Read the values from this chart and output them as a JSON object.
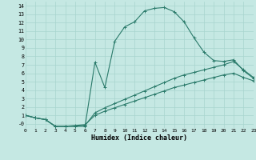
{
  "xlabel": "Humidex (Indice chaleur)",
  "bg_color": "#c5e8e3",
  "grid_color": "#a8d4ce",
  "line_color": "#2a7a6a",
  "xlim": [
    0,
    23
  ],
  "ylim": [
    -0.5,
    14.5
  ],
  "xticks": [
    0,
    1,
    2,
    3,
    4,
    5,
    6,
    7,
    8,
    9,
    10,
    11,
    12,
    13,
    14,
    15,
    16,
    17,
    18,
    19,
    20,
    21,
    22,
    23
  ],
  "yticks": [
    0,
    1,
    2,
    3,
    4,
    5,
    6,
    7,
    8,
    9,
    10,
    11,
    12,
    13,
    14
  ],
  "ytick_labels": [
    "-0",
    "1",
    "2",
    "3",
    "4",
    "5",
    "6",
    "7",
    "8",
    "9",
    "10",
    "11",
    "12",
    "13",
    "14"
  ],
  "curve1_x": [
    0,
    1,
    2,
    3,
    4,
    5,
    6,
    7,
    8,
    9,
    10,
    11,
    12,
    13,
    14,
    15,
    16,
    17,
    18,
    19,
    20,
    21,
    22,
    23
  ],
  "curve1_y": [
    1.0,
    0.7,
    0.5,
    -0.3,
    -0.3,
    -0.3,
    -0.3,
    7.3,
    4.3,
    9.8,
    11.5,
    12.1,
    13.4,
    13.7,
    13.8,
    13.3,
    12.1,
    10.2,
    8.5,
    7.5,
    7.4,
    7.6,
    6.3,
    5.4
  ],
  "curve2_x": [
    0,
    1,
    2,
    3,
    4,
    5,
    6,
    7,
    8,
    9,
    10,
    11,
    12,
    13,
    14,
    15,
    16,
    17,
    18,
    19,
    20,
    21,
    22,
    23
  ],
  "curve2_y": [
    1.0,
    0.7,
    0.5,
    -0.3,
    -0.3,
    -0.3,
    -0.2,
    1.3,
    1.9,
    2.4,
    2.9,
    3.4,
    3.9,
    4.4,
    4.9,
    5.4,
    5.8,
    6.1,
    6.4,
    6.7,
    7.0,
    7.4,
    6.4,
    5.5
  ],
  "curve3_x": [
    0,
    1,
    2,
    3,
    4,
    5,
    6,
    7,
    8,
    9,
    10,
    11,
    12,
    13,
    14,
    15,
    16,
    17,
    18,
    19,
    20,
    21,
    22,
    23
  ],
  "curve3_y": [
    1.0,
    0.7,
    0.5,
    -0.3,
    -0.3,
    -0.2,
    -0.1,
    1.0,
    1.5,
    1.9,
    2.3,
    2.7,
    3.1,
    3.5,
    3.9,
    4.3,
    4.6,
    4.9,
    5.2,
    5.5,
    5.8,
    6.0,
    5.5,
    5.1
  ]
}
